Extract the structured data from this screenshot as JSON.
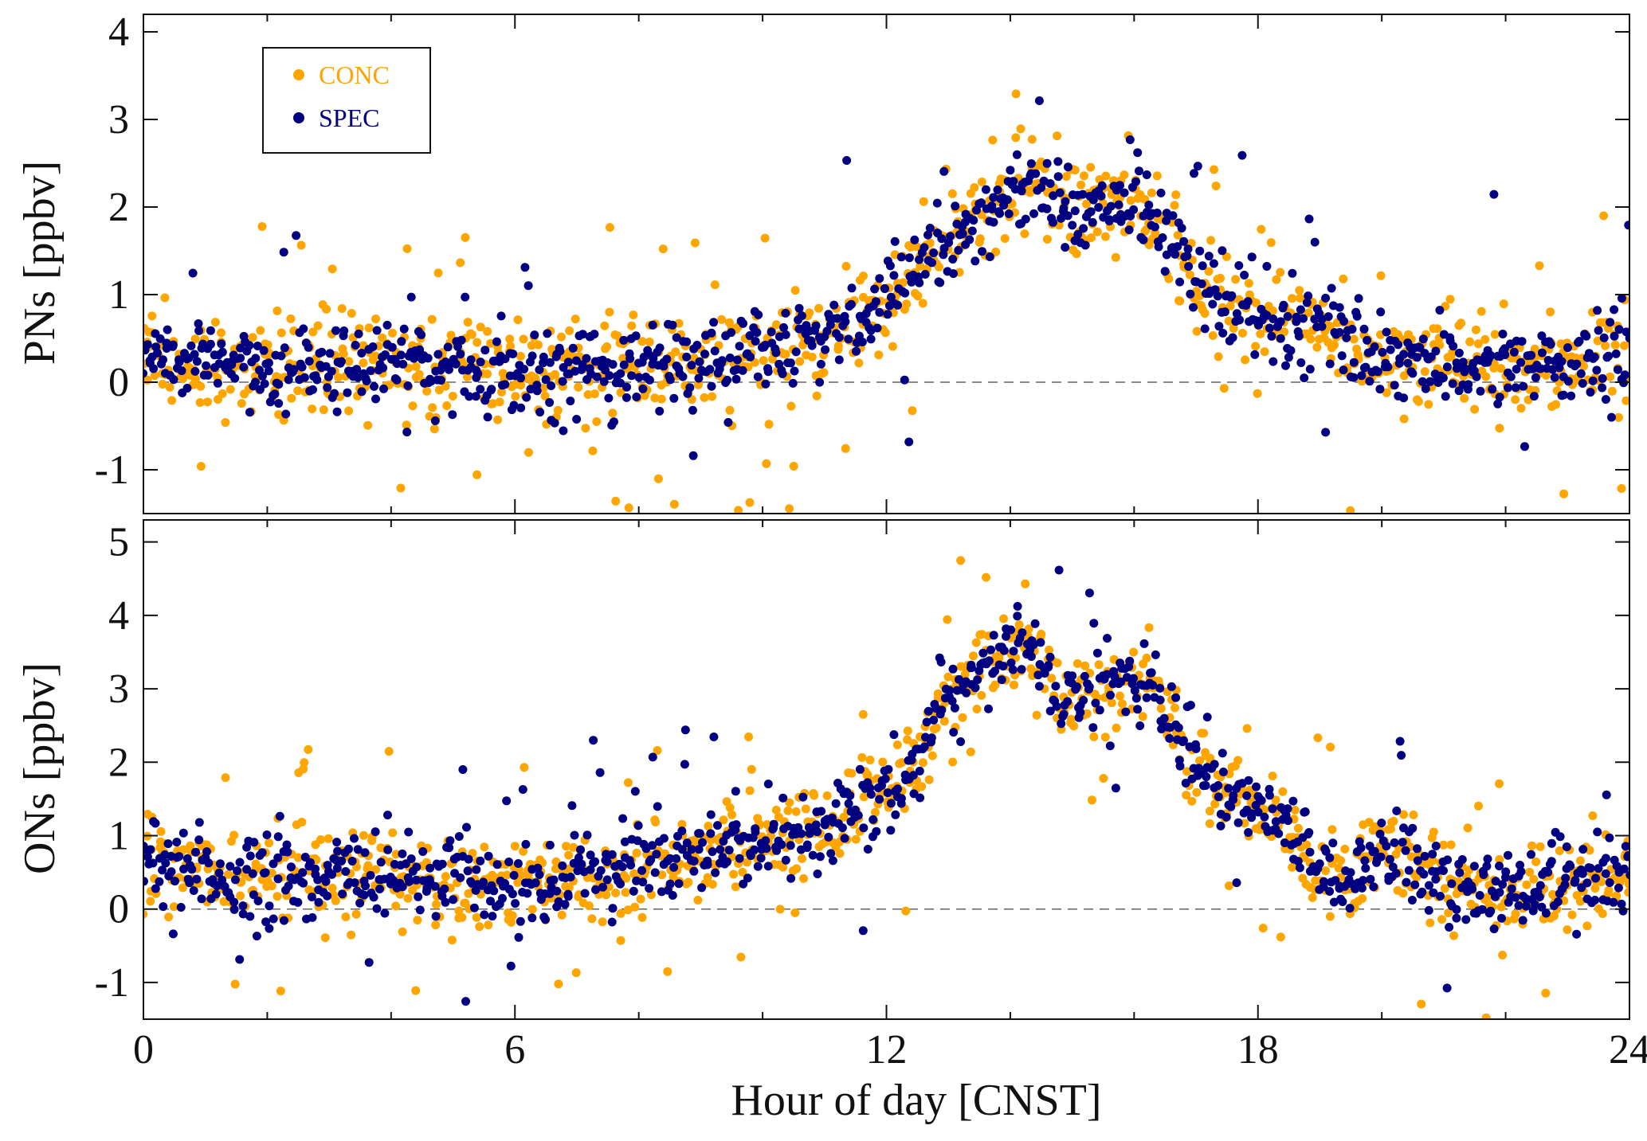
{
  "colors": {
    "conc": "#FFA500",
    "spec": "#000080",
    "axis": "#111111",
    "zero_line": "#666666"
  },
  "chart_data": {
    "type": "scatter",
    "xlabel": "Hour of day [CNST]",
    "xlim": [
      0,
      24
    ],
    "x_ticks": [
      0,
      6,
      12,
      18,
      24
    ],
    "x_tick_labels": [
      "0",
      "6",
      "12",
      "18",
      "24"
    ],
    "x_minor_step": 2,
    "sample_step_hours": 0.05,
    "legend": {
      "placement": "top-left",
      "entries": [
        "CONC",
        "SPEC"
      ]
    },
    "panels": [
      {
        "ylabel": "PNs [ppbv]",
        "ylim": [
          -1.5,
          4.2
        ],
        "y_ticks": [
          -1,
          0,
          1,
          2,
          3,
          4
        ],
        "y_tick_labels": [
          "-1",
          "0",
          "1",
          "2",
          "3",
          "4"
        ],
        "zero_line": true,
        "trend": {
          "x": [
            0,
            0.5,
            2,
            4,
            6,
            8,
            10,
            11,
            11.5,
            12,
            12.5,
            13,
            13.5,
            14,
            14.5,
            15,
            15.5,
            16,
            16.5,
            17,
            17.5,
            18,
            19,
            20,
            21,
            22,
            23,
            24
          ],
          "y": [
            0.5,
            0.2,
            0.15,
            0.2,
            0.15,
            0.15,
            0.35,
            0.45,
            0.7,
            0.85,
            1.2,
            1.6,
            1.95,
            2.2,
            2.25,
            1.95,
            2.0,
            2.05,
            1.75,
            1.1,
            0.85,
            0.75,
            0.55,
            0.3,
            0.2,
            0.15,
            0.2,
            0.25
          ]
        },
        "series": [
          {
            "name": "CONC",
            "spread": 0.28,
            "outlier_rate": 0.045
          },
          {
            "name": "SPEC",
            "spread": 0.24,
            "outlier_rate": 0.035
          }
        ]
      },
      {
        "ylabel": "ONs [ppbv]",
        "ylim": [
          -1.5,
          5.3
        ],
        "y_ticks": [
          -1,
          0,
          1,
          2,
          3,
          4,
          5
        ],
        "y_tick_labels": [
          "-1",
          "0",
          "1",
          "2",
          "3",
          "4",
          "5"
        ],
        "zero_line": true,
        "trend": {
          "x": [
            0,
            0.5,
            2,
            4,
            6,
            7,
            8,
            9,
            10,
            11,
            11.5,
            12,
            12.5,
            13,
            13.5,
            14,
            14.5,
            14.8,
            15,
            15.5,
            16,
            16.3,
            16.8,
            17.5,
            18,
            18.5,
            19,
            19.5,
            20,
            21,
            22,
            23,
            24
          ],
          "y": [
            0.8,
            0.55,
            0.45,
            0.45,
            0.4,
            0.4,
            0.6,
            0.75,
            0.95,
            1.05,
            1.4,
            1.65,
            2.0,
            2.9,
            3.2,
            3.55,
            3.4,
            2.8,
            2.85,
            3.0,
            3.2,
            3.1,
            2.2,
            1.6,
            1.4,
            1.1,
            0.5,
            0.3,
            0.85,
            0.35,
            0.2,
            0.35,
            0.5
          ]
        },
        "series": [
          {
            "name": "CONC",
            "spread": 0.3,
            "outlier_rate": 0.045
          },
          {
            "name": "SPEC",
            "spread": 0.27,
            "outlier_rate": 0.035
          }
        ]
      }
    ]
  }
}
